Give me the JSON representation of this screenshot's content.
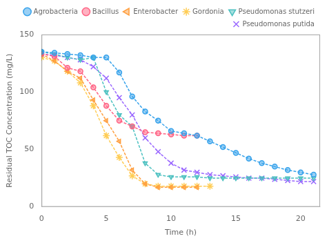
{
  "chart_data": {
    "type": "line",
    "x_label": "Time (h)",
    "y_label": "Residual TOC Concentration (mg/L)",
    "xlim": [
      0,
      21.5
    ],
    "ylim": [
      0,
      150
    ],
    "xticks": [
      0,
      5,
      10,
      15,
      20
    ],
    "yticks": [
      0,
      50,
      100,
      150
    ],
    "grid": false,
    "legend": "upper right",
    "series": [
      {
        "name": "Agrobacteria",
        "marker": "circle",
        "line_style": "dashed",
        "x": [
          0,
          1,
          2,
          3,
          4,
          5,
          6,
          7,
          8,
          9,
          10,
          11,
          12,
          13,
          14,
          15,
          16,
          17,
          18,
          19,
          20,
          21
        ],
        "values": [
          135,
          134,
          133,
          132,
          130,
          130,
          117,
          96,
          83,
          75,
          66,
          64,
          62,
          57,
          52,
          47,
          42,
          38,
          35,
          32,
          30,
          28
        ]
      },
      {
        "name": "Bacillus",
        "marker": "circle",
        "line_style": "dashed",
        "x": [
          0,
          1,
          2,
          3,
          4,
          5,
          6,
          7,
          8,
          9,
          10,
          11,
          12
        ],
        "values": [
          133,
          131,
          121,
          118,
          104,
          88,
          75,
          70,
          65,
          64,
          63,
          62,
          62
        ]
      },
      {
        "name": "Enterobacter",
        "marker": "triangle-left",
        "line_style": "dashed",
        "x": [
          0,
          1,
          2,
          3,
          4,
          5,
          6,
          7,
          8,
          9,
          10,
          11,
          12
        ],
        "values": [
          133,
          127,
          118,
          112,
          93,
          75,
          57,
          32,
          20,
          17,
          17,
          17,
          17
        ]
      },
      {
        "name": "Gordonia",
        "marker": "star",
        "line_style": "dashed",
        "x": [
          0,
          1,
          2,
          3,
          4,
          5,
          6,
          7,
          8,
          9,
          10,
          11,
          12,
          13
        ],
        "values": [
          130,
          127,
          118,
          108,
          88,
          62,
          43,
          27,
          20,
          18,
          18,
          18,
          18,
          18
        ]
      },
      {
        "name": "Pseudomonas stutzeri",
        "marker": "triangle-down",
        "line_style": "dashed",
        "x": [
          0,
          1,
          2,
          3,
          4,
          5,
          6,
          7,
          8,
          9,
          10,
          11,
          12,
          13,
          14,
          15,
          16,
          17,
          18,
          19,
          20,
          21
        ],
        "values": [
          135,
          133,
          130,
          128,
          130,
          100,
          80,
          70,
          38,
          28,
          26,
          26,
          26,
          25,
          25,
          25,
          25,
          25,
          25,
          25,
          25,
          25
        ]
      },
      {
        "name": "Pseudomonas putida",
        "marker": "x",
        "line_style": "dashed",
        "x": [
          0,
          1,
          2,
          3,
          4,
          5,
          6,
          7,
          8,
          9,
          10,
          11,
          12,
          13,
          14,
          15,
          16,
          17,
          18,
          19,
          20,
          21
        ],
        "values": [
          133,
          132,
          130,
          128,
          122,
          112,
          95,
          80,
          60,
          48,
          38,
          32,
          30,
          28,
          27,
          26,
          25,
          25,
          24,
          23,
          22,
          22
        ]
      }
    ]
  }
}
